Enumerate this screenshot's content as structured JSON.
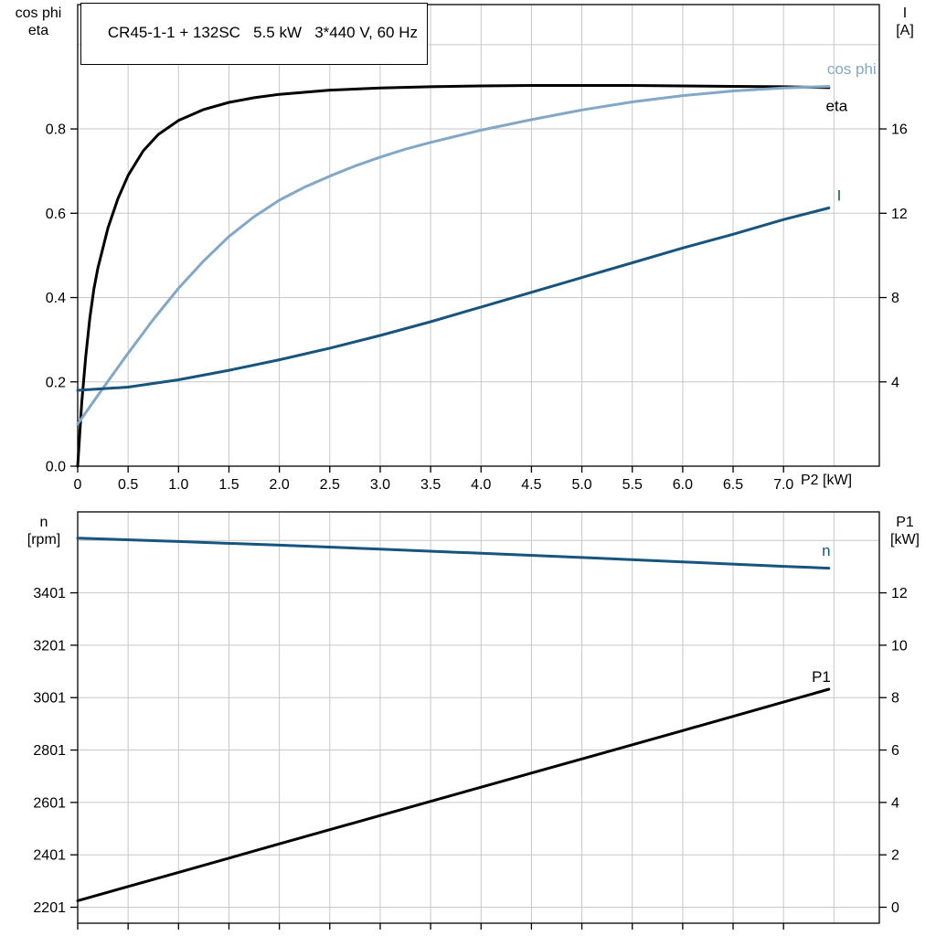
{
  "colors": {
    "curve_black": "#000000",
    "curve_light_blue": "#82a7c7",
    "curve_dark_blue": "#17547e",
    "grid": "#c7c7c7",
    "axis": "#000000",
    "text": "#000000"
  },
  "chart_data": [
    {
      "id": "top",
      "type": "line",
      "title": "CR45-1-1 + 132SC   5.5 kW   3*440 V, 60 Hz",
      "x_axis": {
        "label": "P2 [kW]",
        "min": 0,
        "max": 7.95,
        "ticks": [
          0,
          0.5,
          1,
          1.5,
          2,
          2.5,
          3,
          3.5,
          4,
          4.5,
          5,
          5.5,
          6,
          6.5,
          7
        ],
        "tick_labels": [
          "0",
          "0.5",
          "1.0",
          "1.5",
          "2.0",
          "2.5",
          "3.0",
          "3.5",
          "4.0",
          "4.5",
          "5.0",
          "5.5",
          "6.0",
          "6.5",
          "7.0"
        ],
        "grid": [
          0.5,
          1,
          1.5,
          2,
          2.5,
          3,
          3.5,
          4,
          4.5,
          5,
          5.5,
          6,
          6.5,
          7,
          7.5
        ]
      },
      "y_left": {
        "title_lines": [
          "cos phi",
          "eta"
        ],
        "min": 0,
        "max": 1.095,
        "ticks": [
          0,
          0.2,
          0.4,
          0.6,
          0.8
        ],
        "tick_labels": [
          "0.0",
          "0.2",
          "0.4",
          "0.6",
          "0.8"
        ],
        "grid": [
          0.2,
          0.4,
          0.6,
          0.8,
          1.0
        ]
      },
      "y_right": {
        "title_lines": [
          "I",
          "[A]"
        ],
        "min": 0,
        "max": 21.9,
        "ticks": [
          4,
          8,
          12,
          16
        ],
        "tick_labels": [
          "4",
          "8",
          "12",
          "16"
        ]
      },
      "series": [
        {
          "name": "eta",
          "label": "eta",
          "axis": "left",
          "color_key": "curve_black",
          "label_at": [
            7.42,
            0.842
          ],
          "label_anchor": "start",
          "points": [
            [
              0,
              0
            ],
            [
              0.04,
              0.15
            ],
            [
              0.08,
              0.26
            ],
            [
              0.12,
              0.35
            ],
            [
              0.16,
              0.42
            ],
            [
              0.2,
              0.47
            ],
            [
              0.3,
              0.565
            ],
            [
              0.4,
              0.635
            ],
            [
              0.5,
              0.69
            ],
            [
              0.65,
              0.748
            ],
            [
              0.8,
              0.787
            ],
            [
              1.0,
              0.82
            ],
            [
              1.25,
              0.846
            ],
            [
              1.5,
              0.863
            ],
            [
              1.75,
              0.874
            ],
            [
              2.0,
              0.882
            ],
            [
              2.5,
              0.892
            ],
            [
              3.0,
              0.897
            ],
            [
              3.5,
              0.9
            ],
            [
              4.0,
              0.902
            ],
            [
              4.5,
              0.903
            ],
            [
              5.0,
              0.903
            ],
            [
              5.5,
              0.903
            ],
            [
              6.0,
              0.902
            ],
            [
              6.5,
              0.901
            ],
            [
              7.0,
              0.9
            ],
            [
              7.45,
              0.898
            ]
          ]
        },
        {
          "name": "cos-phi",
          "label": "cos phi",
          "axis": "left",
          "color_key": "curve_light_blue",
          "label_at": [
            7.92,
            0.93
          ],
          "label_anchor": "end",
          "points": [
            [
              0,
              0.1
            ],
            [
              0.25,
              0.185
            ],
            [
              0.5,
              0.268
            ],
            [
              0.75,
              0.348
            ],
            [
              1.0,
              0.422
            ],
            [
              1.25,
              0.487
            ],
            [
              1.5,
              0.545
            ],
            [
              1.75,
              0.592
            ],
            [
              2.0,
              0.631
            ],
            [
              2.25,
              0.662
            ],
            [
              2.5,
              0.688
            ],
            [
              2.75,
              0.712
            ],
            [
              3.0,
              0.733
            ],
            [
              3.25,
              0.752
            ],
            [
              3.5,
              0.768
            ],
            [
              4.0,
              0.797
            ],
            [
              4.5,
              0.822
            ],
            [
              5.0,
              0.845
            ],
            [
              5.5,
              0.864
            ],
            [
              6.0,
              0.879
            ],
            [
              6.5,
              0.89
            ],
            [
              7.0,
              0.897
            ],
            [
              7.45,
              0.901
            ]
          ]
        },
        {
          "name": "current",
          "label": "I",
          "axis": "right",
          "color_key": "curve_dark_blue",
          "label_at": [
            7.53,
            12.6
          ],
          "label_anchor": "start",
          "points": [
            [
              0,
              3.6
            ],
            [
              0.5,
              3.75
            ],
            [
              1.0,
              4.1
            ],
            [
              1.5,
              4.55
            ],
            [
              2.0,
              5.05
            ],
            [
              2.5,
              5.6
            ],
            [
              3.0,
              6.2
            ],
            [
              3.5,
              6.85
            ],
            [
              4.0,
              7.55
            ],
            [
              4.5,
              8.25
            ],
            [
              5.0,
              8.95
            ],
            [
              5.5,
              9.65
            ],
            [
              6.0,
              10.35
            ],
            [
              6.5,
              11.0
            ],
            [
              7.0,
              11.7
            ],
            [
              7.45,
              12.25
            ]
          ]
        }
      ]
    },
    {
      "id": "bottom",
      "type": "line",
      "x_axis": {
        "label": "",
        "min": 0,
        "max": 7.95,
        "ticks": [
          0,
          0.5,
          1,
          1.5,
          2,
          2.5,
          3,
          3.5,
          4,
          4.5,
          5,
          5.5,
          6,
          6.5,
          7
        ],
        "tick_labels": [],
        "grid": [
          0.5,
          1,
          1.5,
          2,
          2.5,
          3,
          3.5,
          4,
          4.5,
          5,
          5.5,
          6,
          6.5,
          7,
          7.5
        ]
      },
      "y_left": {
        "title_lines": [
          "n",
          "[rpm]"
        ],
        "min": 2140,
        "max": 3710,
        "ticks": [
          2201,
          2401,
          2601,
          2801,
          3001,
          3201,
          3401
        ],
        "tick_labels": [
          "2201",
          "2401",
          "2601",
          "2801",
          "3001",
          "3201",
          "3401"
        ],
        "grid": [
          2201,
          2401,
          2601,
          2801,
          3001,
          3201,
          3401,
          3601
        ]
      },
      "y_right": {
        "title_lines": [
          "P1",
          "[kW]"
        ],
        "min": -0.61,
        "max": 15.09,
        "ticks": [
          0,
          2,
          4,
          6,
          8,
          10,
          12
        ],
        "tick_labels": [
          "0",
          "2",
          "4",
          "6",
          "8",
          "10",
          "12"
        ]
      },
      "series": [
        {
          "name": "speed",
          "label": "n",
          "axis": "left",
          "color_key": "curve_dark_blue",
          "label_at": [
            7.38,
            3542
          ],
          "label_anchor": "start",
          "points": [
            [
              0,
              3610
            ],
            [
              1,
              3597
            ],
            [
              2,
              3583
            ],
            [
              3,
              3568
            ],
            [
              4,
              3552
            ],
            [
              5,
              3536
            ],
            [
              6,
              3519
            ],
            [
              7,
              3502
            ],
            [
              7.45,
              3495
            ]
          ]
        },
        {
          "name": "p1",
          "label": "P1",
          "axis": "right",
          "color_key": "curve_black",
          "label_at": [
            7.28,
            8.6
          ],
          "label_anchor": "start",
          "points": [
            [
              0,
              0.25
            ],
            [
              1,
              1.33
            ],
            [
              2,
              2.42
            ],
            [
              3,
              3.5
            ],
            [
              4,
              4.58
            ],
            [
              5,
              5.66
            ],
            [
              6,
              6.74
            ],
            [
              7,
              7.83
            ],
            [
              7.45,
              8.32
            ]
          ]
        }
      ]
    }
  ]
}
